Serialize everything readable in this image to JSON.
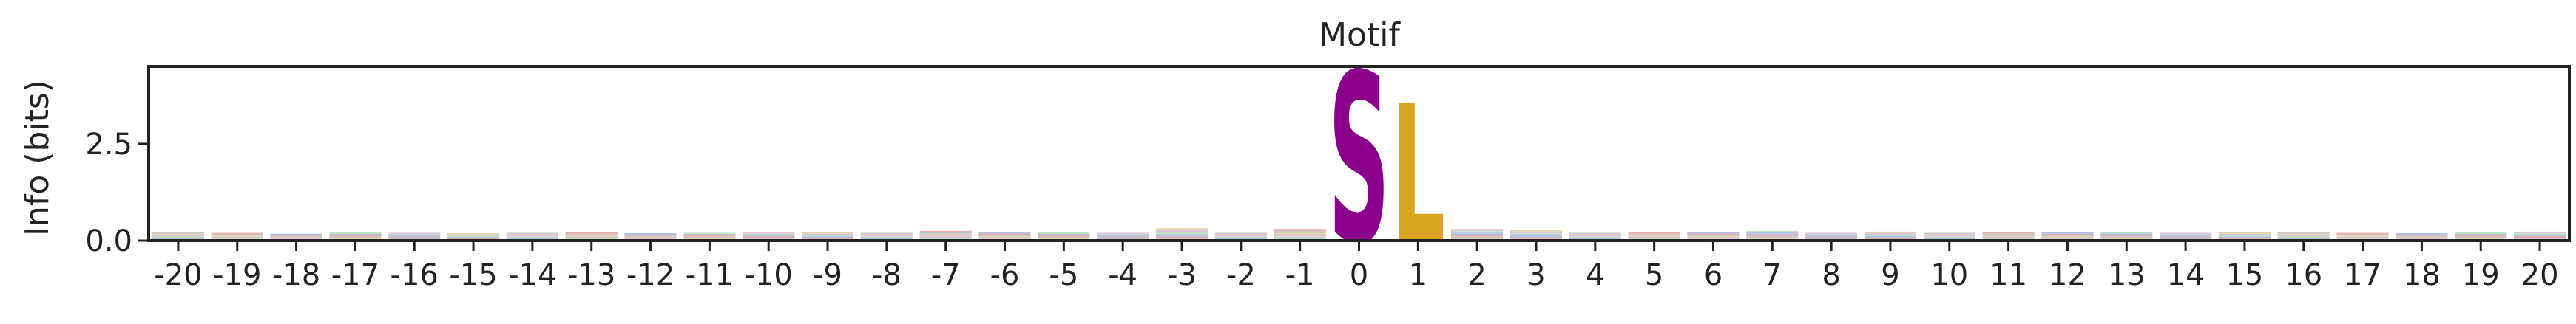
{
  "chart_data": {
    "type": "sequence-logo",
    "title": "Motif",
    "xlabel": "",
    "ylabel": "Info (bits)",
    "x_ticks": [
      "-20",
      "-19",
      "-18",
      "-17",
      "-16",
      "-15",
      "-14",
      "-13",
      "-12",
      "-11",
      "-10",
      "-9",
      "-8",
      "-7",
      "-6",
      "-5",
      "-4",
      "-3",
      "-2",
      "-1",
      "0",
      "1",
      "2",
      "3",
      "4",
      "5",
      "6",
      "7",
      "8",
      "9",
      "10",
      "11",
      "12",
      "13",
      "14",
      "15",
      "16",
      "17",
      "18",
      "19",
      "20"
    ],
    "y_ticks": [
      "0.0",
      "2.5"
    ],
    "ylim": [
      0,
      4.5
    ],
    "grid": false,
    "letter_colors": {
      "S": "#8b008b",
      "L": "#daa520"
    },
    "positions": [
      {
        "pos": "-20",
        "total_bits": 0.22
      },
      {
        "pos": "-19",
        "total_bits": 0.2
      },
      {
        "pos": "-18",
        "total_bits": 0.18
      },
      {
        "pos": "-17",
        "total_bits": 0.21
      },
      {
        "pos": "-16",
        "total_bits": 0.2
      },
      {
        "pos": "-15",
        "total_bits": 0.19
      },
      {
        "pos": "-14",
        "total_bits": 0.2
      },
      {
        "pos": "-13",
        "total_bits": 0.21
      },
      {
        "pos": "-12",
        "total_bits": 0.19
      },
      {
        "pos": "-11",
        "total_bits": 0.2
      },
      {
        "pos": "-10",
        "total_bits": 0.21
      },
      {
        "pos": "-9",
        "total_bits": 0.22
      },
      {
        "pos": "-8",
        "total_bits": 0.2
      },
      {
        "pos": "-7",
        "total_bits": 0.25
      },
      {
        "pos": "-6",
        "total_bits": 0.22
      },
      {
        "pos": "-5",
        "total_bits": 0.21
      },
      {
        "pos": "-4",
        "total_bits": 0.2
      },
      {
        "pos": "-3",
        "total_bits": 0.32
      },
      {
        "pos": "-2",
        "total_bits": 0.2
      },
      {
        "pos": "-1",
        "total_bits": 0.3
      },
      {
        "pos": "0",
        "letters": [
          {
            "letter": "S",
            "bits": 4.45
          }
        ]
      },
      {
        "pos": "1",
        "letters": [
          {
            "letter": "L",
            "bits": 3.6
          }
        ]
      },
      {
        "pos": "2",
        "total_bits": 0.3
      },
      {
        "pos": "3",
        "total_bits": 0.28
      },
      {
        "pos": "4",
        "total_bits": 0.2
      },
      {
        "pos": "5",
        "total_bits": 0.21
      },
      {
        "pos": "6",
        "total_bits": 0.22
      },
      {
        "pos": "7",
        "total_bits": 0.25
      },
      {
        "pos": "8",
        "total_bits": 0.2
      },
      {
        "pos": "9",
        "total_bits": 0.23
      },
      {
        "pos": "10",
        "total_bits": 0.2
      },
      {
        "pos": "11",
        "total_bits": 0.22
      },
      {
        "pos": "12",
        "total_bits": 0.21
      },
      {
        "pos": "13",
        "total_bits": 0.22
      },
      {
        "pos": "14",
        "total_bits": 0.2
      },
      {
        "pos": "15",
        "total_bits": 0.21
      },
      {
        "pos": "16",
        "total_bits": 0.22
      },
      {
        "pos": "17",
        "total_bits": 0.2
      },
      {
        "pos": "18",
        "total_bits": 0.19
      },
      {
        "pos": "19",
        "total_bits": 0.21
      },
      {
        "pos": "20",
        "total_bits": 0.23
      }
    ]
  }
}
